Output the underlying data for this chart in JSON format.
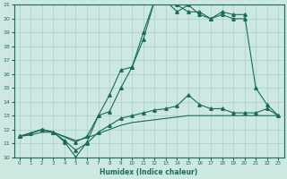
{
  "xlabel": "Humidex (Indice chaleur)",
  "bg_color": "#cce8e0",
  "line_color": "#1a6b5a",
  "grid_color": "#aacfca",
  "xlim": [
    -0.5,
    23.5
  ],
  "ylim": [
    10,
    21
  ],
  "xticks": [
    0,
    1,
    2,
    3,
    4,
    5,
    6,
    7,
    8,
    9,
    10,
    11,
    12,
    13,
    14,
    15,
    16,
    17,
    18,
    19,
    20,
    21,
    22,
    23
  ],
  "yticks": [
    10,
    11,
    12,
    13,
    14,
    15,
    16,
    17,
    18,
    19,
    20,
    21
  ],
  "line1_x": [
    0,
    2,
    3,
    4,
    5,
    6,
    7,
    8,
    9,
    10,
    11,
    12,
    13,
    14,
    15,
    16,
    17,
    18,
    19,
    20
  ],
  "line1_y": [
    11.5,
    12.0,
    11.8,
    11.1,
    10.0,
    11.1,
    13.0,
    14.5,
    16.3,
    16.5,
    19.0,
    21.3,
    21.3,
    20.5,
    21.0,
    20.3,
    20.0,
    20.3,
    20.0,
    20.0
  ],
  "line2_x": [
    0,
    2,
    3,
    5,
    6,
    7,
    8,
    9,
    10,
    11,
    12,
    13,
    14,
    15,
    16,
    17,
    18,
    19,
    20,
    21,
    22,
    23
  ],
  "line2_y": [
    11.5,
    12.0,
    11.8,
    11.1,
    11.5,
    13.0,
    13.3,
    15.0,
    16.5,
    18.5,
    21.3,
    21.5,
    21.0,
    20.5,
    20.5,
    20.0,
    20.5,
    20.3,
    20.3,
    15.0,
    13.8,
    13.0
  ],
  "line3_x": [
    0,
    1,
    2,
    3,
    4,
    5,
    6,
    7,
    8,
    9,
    10,
    11,
    12,
    13,
    14,
    15,
    16,
    17,
    18,
    19,
    20,
    21,
    22,
    23
  ],
  "line3_y": [
    11.5,
    11.7,
    12.0,
    11.8,
    11.2,
    10.5,
    11.0,
    11.8,
    12.3,
    12.8,
    13.0,
    13.2,
    13.4,
    13.5,
    13.7,
    14.5,
    13.8,
    13.5,
    13.5,
    13.2,
    13.2,
    13.2,
    13.5,
    13.0
  ],
  "line4_x": [
    0,
    1,
    2,
    3,
    4,
    5,
    6,
    7,
    8,
    9,
    10,
    11,
    12,
    13,
    14,
    15,
    16,
    17,
    18,
    19,
    20,
    21,
    22,
    23
  ],
  "line4_y": [
    11.5,
    11.6,
    11.8,
    11.8,
    11.5,
    11.2,
    11.4,
    11.7,
    12.0,
    12.3,
    12.5,
    12.6,
    12.7,
    12.8,
    12.9,
    13.0,
    13.0,
    13.0,
    13.0,
    13.0,
    13.0,
    13.0,
    13.0,
    13.0
  ]
}
